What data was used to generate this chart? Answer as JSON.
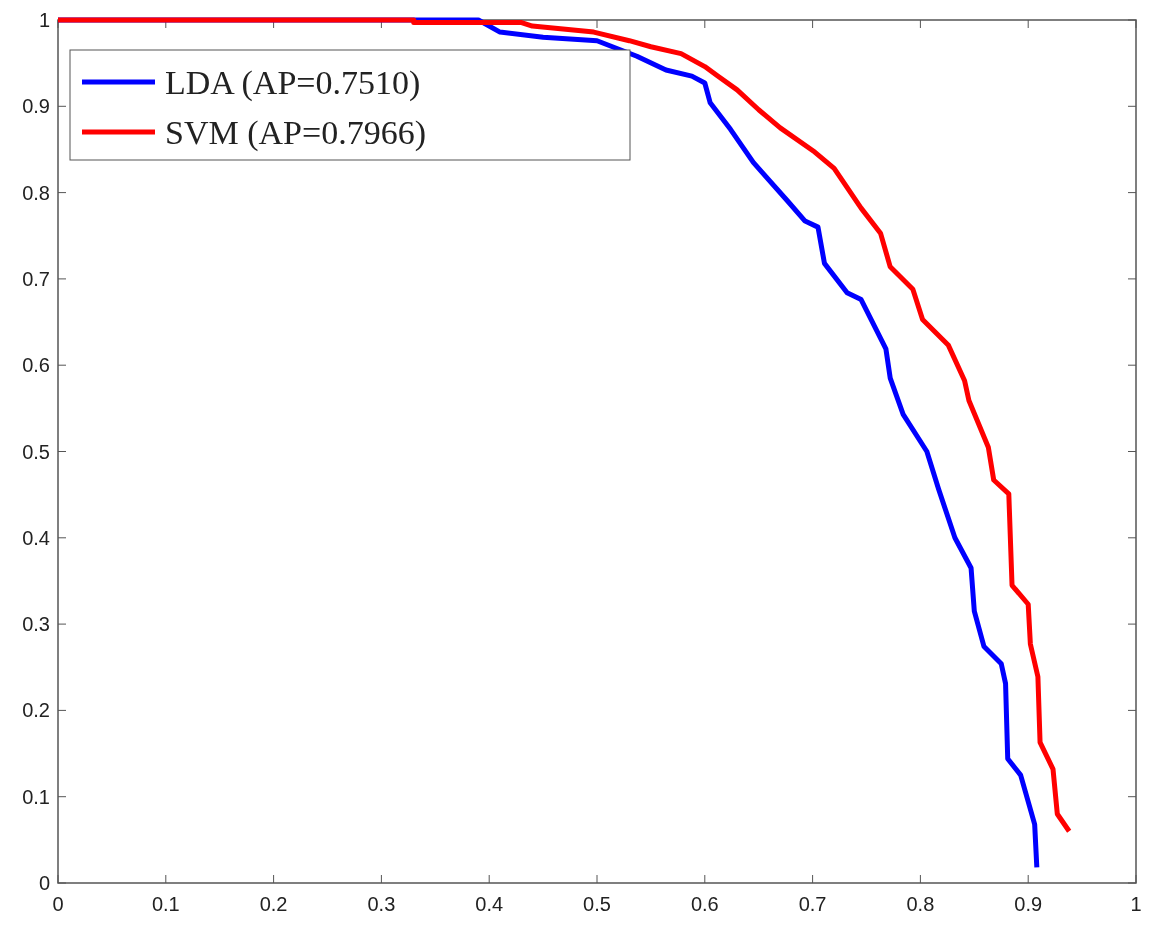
{
  "chart_data": {
    "type": "line",
    "xlim": [
      0,
      1
    ],
    "ylim": [
      0,
      1
    ],
    "xticks": [
      0,
      0.1,
      0.2,
      0.3,
      0.4,
      0.5,
      0.6,
      0.7,
      0.8,
      0.9,
      1
    ],
    "yticks": [
      0,
      0.1,
      0.2,
      0.3,
      0.4,
      0.5,
      0.6,
      0.7,
      0.8,
      0.9,
      1
    ],
    "grid": false,
    "legend": "top left",
    "line_style": "solid",
    "series": [
      {
        "name": "LDA (AP=0.7510)",
        "color": "#0000ff",
        "x": [
          0,
          0.39,
          0.41,
          0.45,
          0.5,
          0.537,
          0.564,
          0.588,
          0.6,
          0.605,
          0.624,
          0.645,
          0.677,
          0.693,
          0.705,
          0.711,
          0.732,
          0.745,
          0.768,
          0.772,
          0.784,
          0.806,
          0.817,
          0.832,
          0.847,
          0.85,
          0.859,
          0.875,
          0.879,
          0.881,
          0.893,
          0.906,
          0.908
        ],
        "values": [
          1,
          1,
          0.986,
          0.98,
          0.976,
          0.958,
          0.942,
          0.935,
          0.927,
          0.904,
          0.873,
          0.835,
          0.79,
          0.767,
          0.76,
          0.718,
          0.684,
          0.676,
          0.619,
          0.585,
          0.543,
          0.5,
          0.456,
          0.4,
          0.365,
          0.315,
          0.274,
          0.254,
          0.231,
          0.144,
          0.125,
          0.068,
          0.018
        ]
      },
      {
        "name": "SVM (AP=0.7966)",
        "color": "#ff0000",
        "x": [
          0,
          0.33,
          0.33,
          0.43,
          0.44,
          0.497,
          0.53,
          0.55,
          0.578,
          0.6,
          0.612,
          0.63,
          0.65,
          0.67,
          0.702,
          0.72,
          0.745,
          0.763,
          0.772,
          0.793,
          0.802,
          0.826,
          0.841,
          0.845,
          0.863,
          0.868,
          0.882,
          0.885,
          0.9,
          0.902,
          0.909,
          0.911,
          0.923,
          0.927,
          0.938
        ],
        "values": [
          1,
          1,
          0.997,
          0.997,
          0.993,
          0.986,
          0.976,
          0.969,
          0.961,
          0.946,
          0.935,
          0.919,
          0.896,
          0.875,
          0.847,
          0.828,
          0.782,
          0.753,
          0.714,
          0.688,
          0.653,
          0.623,
          0.582,
          0.559,
          0.505,
          0.467,
          0.451,
          0.345,
          0.323,
          0.277,
          0.239,
          0.163,
          0.132,
          0.08,
          0.06
        ]
      }
    ]
  }
}
